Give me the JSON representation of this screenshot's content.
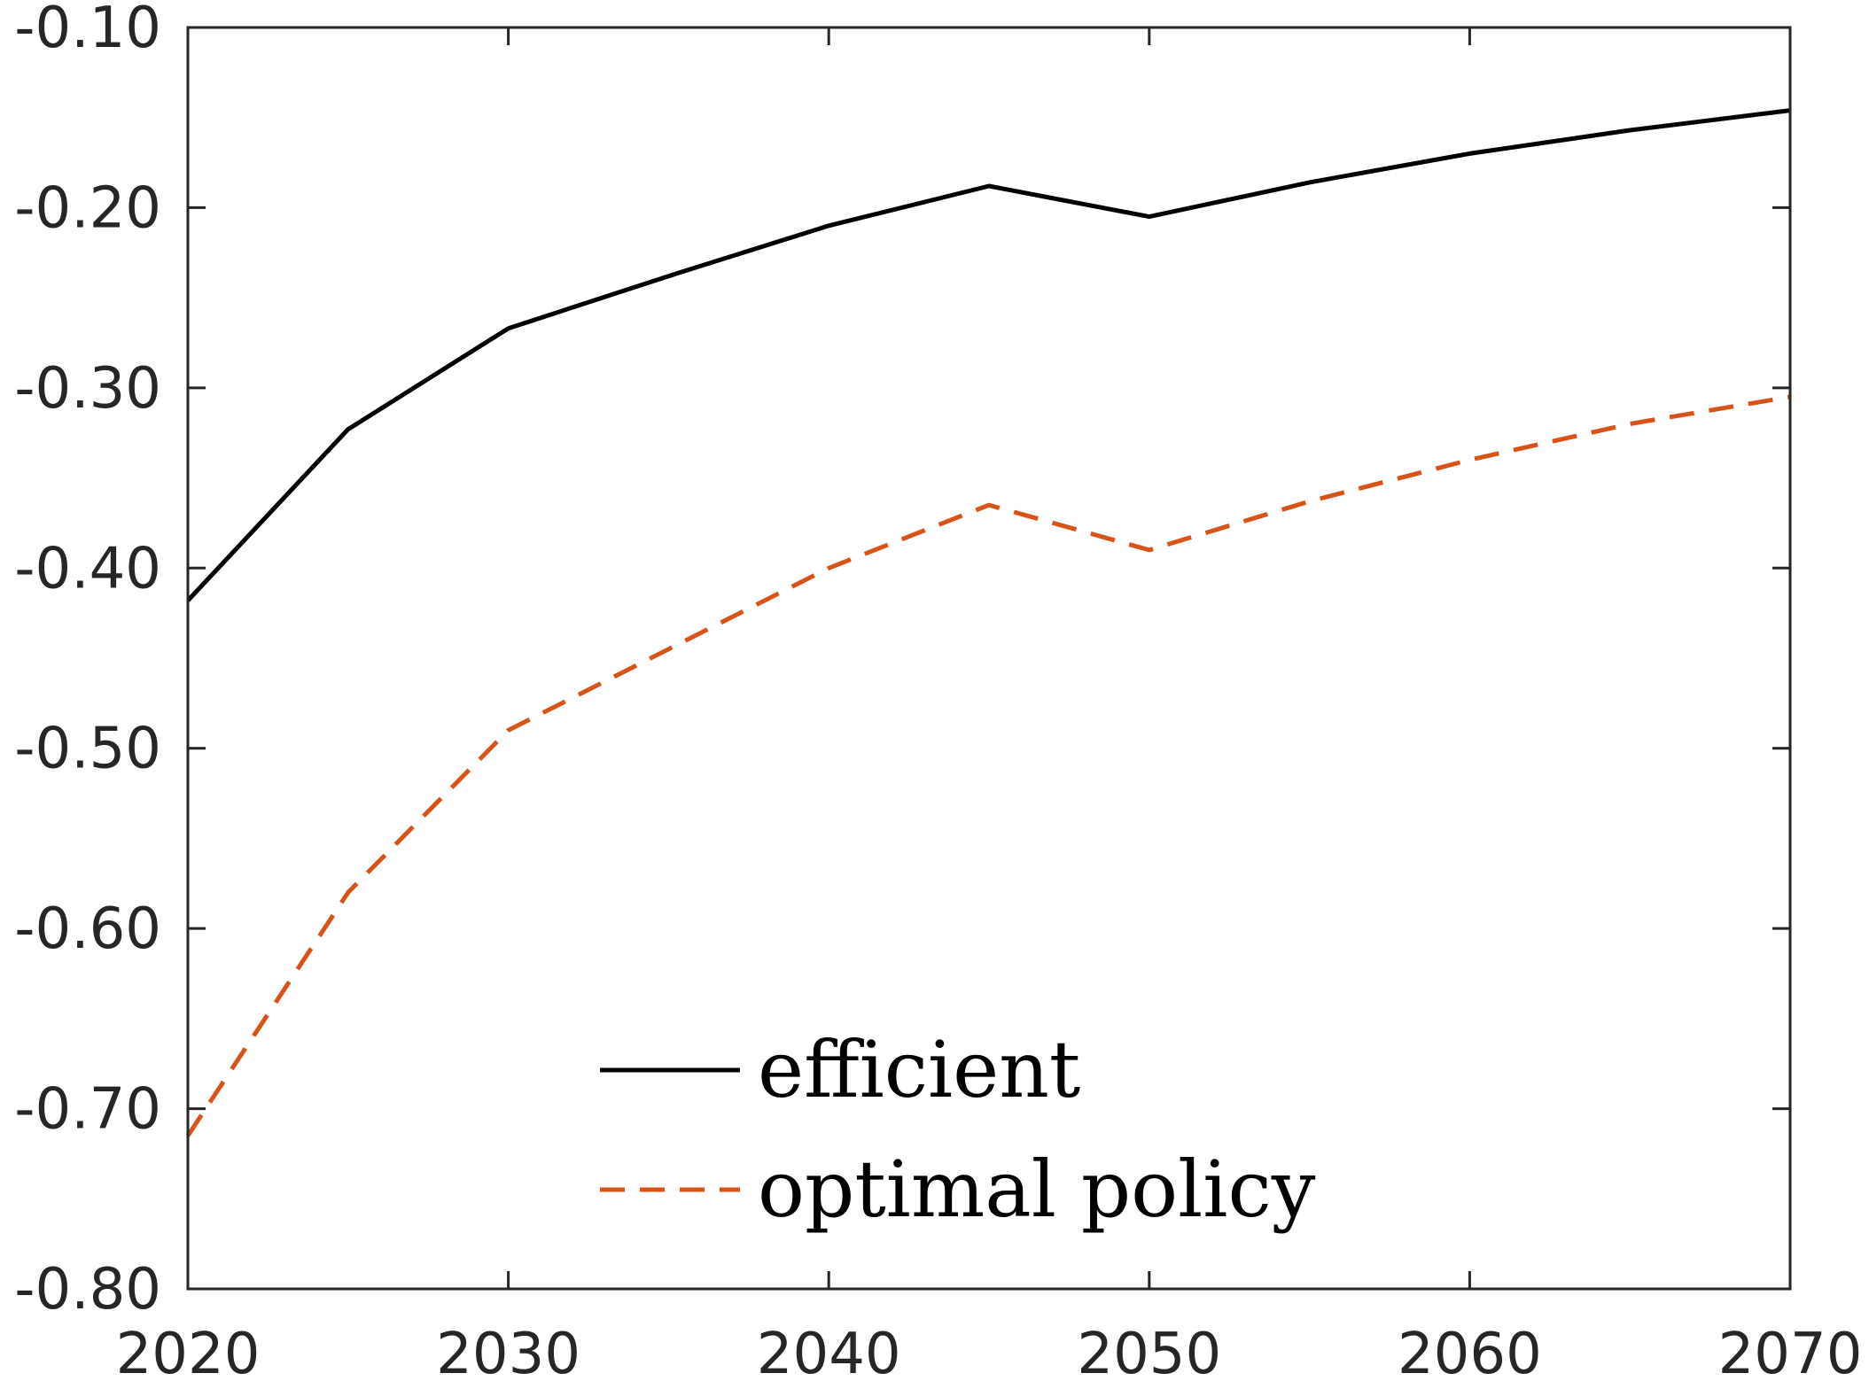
{
  "chart_data": {
    "type": "line",
    "title": "",
    "xlabel": "",
    "ylabel": "",
    "x": [
      2020,
      2025,
      2030,
      2035,
      2040,
      2045,
      2050,
      2055,
      2060,
      2065,
      2070
    ],
    "xlim": [
      2020,
      2070
    ],
    "ylim": [
      -0.8,
      -0.1
    ],
    "xticks": [
      2020,
      2030,
      2040,
      2050,
      2060,
      2070
    ],
    "xtick_labels": [
      "2020",
      "2030",
      "2040",
      "2050",
      "2060",
      "2070"
    ],
    "yticks": [
      -0.8,
      -0.7,
      -0.6,
      -0.5,
      -0.4,
      -0.3,
      -0.2,
      -0.1
    ],
    "ytick_labels": [
      "-0.80",
      "-0.70",
      "-0.60",
      "-0.50",
      "-0.40",
      "-0.30",
      "-0.20",
      "-0.10"
    ],
    "grid": false,
    "legend_position": "bottom-center",
    "series": [
      {
        "name": "efficient",
        "color": "#000000",
        "line_style": "solid",
        "values": [
          -0.418,
          -0.323,
          -0.267,
          -0.238,
          -0.21,
          -0.188,
          -0.205,
          -0.186,
          -0.17,
          -0.157,
          -0.146
        ]
      },
      {
        "name": "optimal policy",
        "color": "#D95319",
        "line_style": "dashed",
        "values": [
          -0.715,
          -0.58,
          -0.49,
          -0.445,
          -0.4,
          -0.365,
          -0.39,
          -0.363,
          -0.34,
          -0.32,
          -0.305
        ]
      }
    ]
  }
}
